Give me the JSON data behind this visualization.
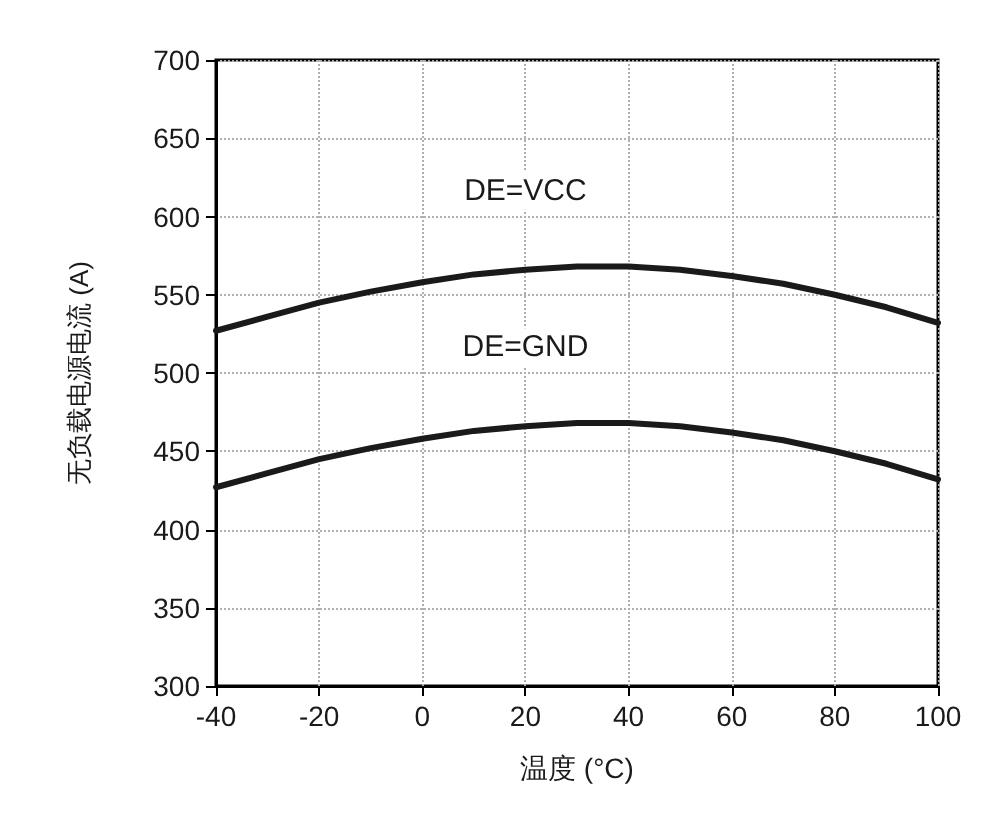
{
  "chart_data": {
    "type": "line",
    "xlabel": "温度 (°C)",
    "ylabel": "无负载电源电流 (A)",
    "x": [
      -40,
      -30,
      -20,
      -10,
      0,
      10,
      20,
      30,
      40,
      50,
      60,
      70,
      80,
      90,
      100
    ],
    "series": [
      {
        "name": "DE=VCC",
        "color": "#1a1a1a",
        "values": [
          527,
          536,
          545,
          552,
          558,
          563,
          566,
          568,
          568,
          566,
          562,
          557,
          550,
          542,
          532
        ]
      },
      {
        "name": "DE=GND",
        "color": "#1a1a1a",
        "values": [
          427,
          436,
          445,
          452,
          458,
          463,
          466,
          468,
          468,
          466,
          462,
          457,
          450,
          442,
          432
        ]
      }
    ],
    "xlim": [
      -40,
      100
    ],
    "xticks": [
      -40,
      -20,
      0,
      20,
      40,
      60,
      80,
      100
    ],
    "ylim": [
      300,
      700
    ],
    "yticks": [
      300,
      350,
      400,
      450,
      500,
      550,
      600,
      650,
      700
    ],
    "grid": true,
    "legend": false,
    "marker": "none",
    "line_style": "solid"
  }
}
